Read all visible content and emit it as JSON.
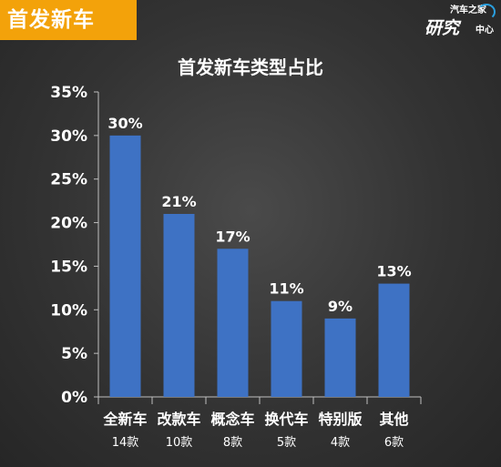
{
  "header": {
    "title": "首发新车",
    "logo_top": "汽车之家",
    "logo_big": "研究",
    "logo_small": "中心"
  },
  "colors": {
    "header_bg": "#f3a20a",
    "bar": "#3e72c4",
    "axis": "#bfbfbf"
  },
  "chart_data": {
    "type": "bar",
    "title": "首发新车类型占比",
    "categories": [
      "全新车",
      "改款车",
      "概念车",
      "换代车",
      "特别版",
      "其他"
    ],
    "counts": [
      "14款",
      "10款",
      "8款",
      "5款",
      "4款",
      "6款"
    ],
    "values": [
      30,
      21,
      17,
      11,
      9,
      13
    ],
    "data_labels": [
      "30%",
      "21%",
      "17%",
      "11%",
      "9%",
      "13%"
    ],
    "y_ticks": [
      "0%",
      "5%",
      "10%",
      "15%",
      "20%",
      "25%",
      "30%",
      "35%"
    ],
    "ylim": [
      0,
      35
    ],
    "grid": false,
    "xlabel": "",
    "ylabel": ""
  }
}
